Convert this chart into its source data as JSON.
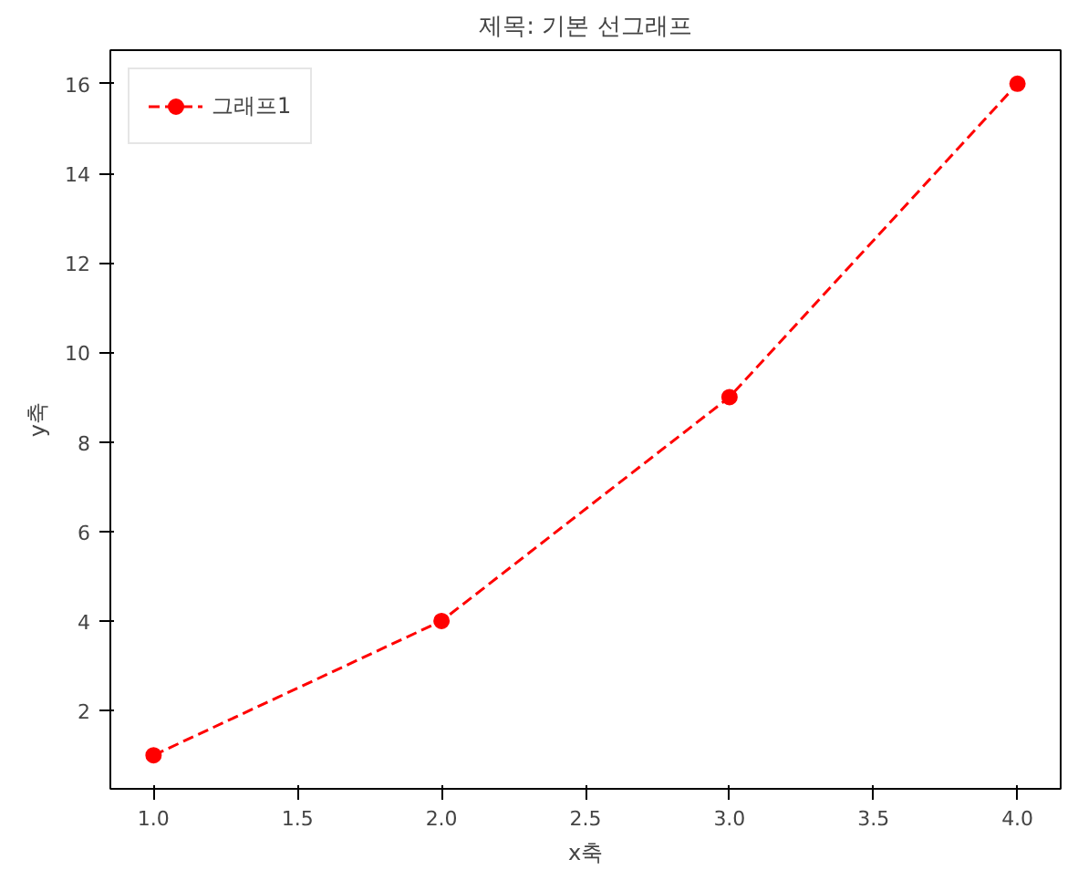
{
  "chart_data": {
    "type": "line",
    "title": "제목: 기본 선그래프",
    "xlabel": "x축",
    "ylabel": "y축",
    "x": [
      1,
      2,
      3,
      4
    ],
    "series": [
      {
        "name": "그래프1",
        "color": "#ff0000",
        "values": [
          1,
          4,
          9,
          16
        ]
      }
    ],
    "xlim": [
      0.85,
      4.15
    ],
    "ylim": [
      0.25,
      16.75
    ],
    "xticks": [
      {
        "value": 1,
        "label": "1.0"
      },
      {
        "value": 1.5,
        "label": "1.5"
      },
      {
        "value": 2,
        "label": "2.0"
      },
      {
        "value": 2.5,
        "label": "2.5"
      },
      {
        "value": 3,
        "label": "3.0"
      },
      {
        "value": 3.5,
        "label": "3.5"
      },
      {
        "value": 4,
        "label": "4.0"
      }
    ],
    "yticks": [
      2,
      4,
      6,
      8,
      10,
      12,
      14,
      16
    ],
    "grid": false,
    "legend": "top left",
    "marker": "circle",
    "line_style": "dashed"
  }
}
